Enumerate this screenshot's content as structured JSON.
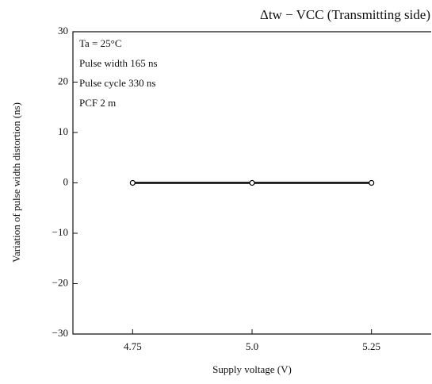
{
  "chart_data": {
    "type": "line",
    "title": "Δtw − VCC (Transmitting side)",
    "annotations": [
      "Ta = 25°C",
      "Pulse width 165 ns",
      "Pulse cycle 330 ns",
      "PCF 2 m"
    ],
    "x_label": "Supply voltage   (V)",
    "y_label": "Variation of pulse width distortion   (ns)",
    "x": [
      4.75,
      5.0,
      5.25
    ],
    "series": [
      {
        "name": "Δtw",
        "color": "#000000",
        "values": [
          0,
          0,
          0
        ]
      }
    ],
    "xlim": [
      4.625,
      5.375
    ],
    "xticks": [
      4.75,
      {
        "value": 5,
        "label": "5.0"
      },
      5.25
    ],
    "ylim": [
      -30,
      30
    ],
    "yticks": [
      {
        "value": -30,
        "label": "−30"
      },
      {
        "value": -20,
        "label": "−20"
      },
      {
        "value": -10,
        "label": "−10"
      },
      0,
      10,
      20,
      30
    ],
    "grid": false
  }
}
